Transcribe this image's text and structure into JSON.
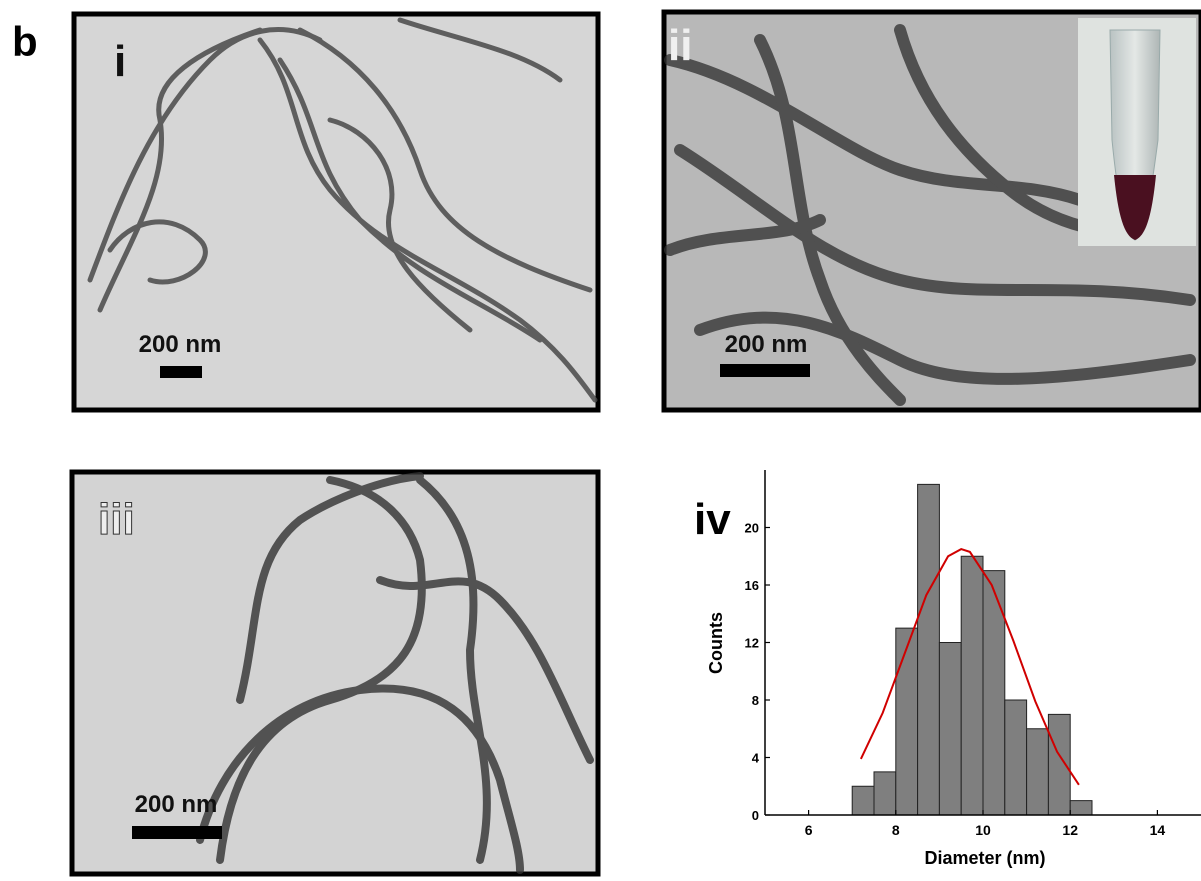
{
  "figure_label": "b",
  "panels": [
    {
      "label": "i",
      "scale_bar": "200 nm"
    },
    {
      "label": "ii",
      "scale_bar": "200 nm"
    },
    {
      "label": "iii",
      "scale_bar": "200 nm"
    }
  ],
  "chart_data": {
    "type": "histogram",
    "panel_label": "iv",
    "x_label": "Diameter (nm)",
    "y_label": "Counts",
    "bins": [
      7.0,
      7.5,
      8.0,
      8.5,
      9.0,
      9.5,
      10.0,
      10.5,
      11.0,
      11.5,
      12.0,
      12.5
    ],
    "values": [
      2,
      3,
      13,
      23,
      12,
      18,
      17,
      8,
      6,
      7,
      1
    ],
    "color": "#7f7f7f",
    "xlim": [
      5,
      15
    ],
    "xticks": [
      6,
      8,
      10,
      12,
      14
    ],
    "ylim": [
      0,
      24
    ],
    "yticks": [
      0,
      4,
      8,
      12,
      16,
      20
    ],
    "fit": {
      "color": "#d00000",
      "x": [
        7.2,
        7.7,
        8.2,
        8.7,
        9.2,
        9.5,
        9.7,
        10.2,
        10.7,
        11.2,
        11.7,
        12.2
      ],
      "values": [
        3.9,
        7.1,
        11.2,
        15.3,
        18.0,
        18.5,
        18.3,
        16.0,
        12.1,
        7.9,
        4.4,
        2.1
      ]
    }
  }
}
